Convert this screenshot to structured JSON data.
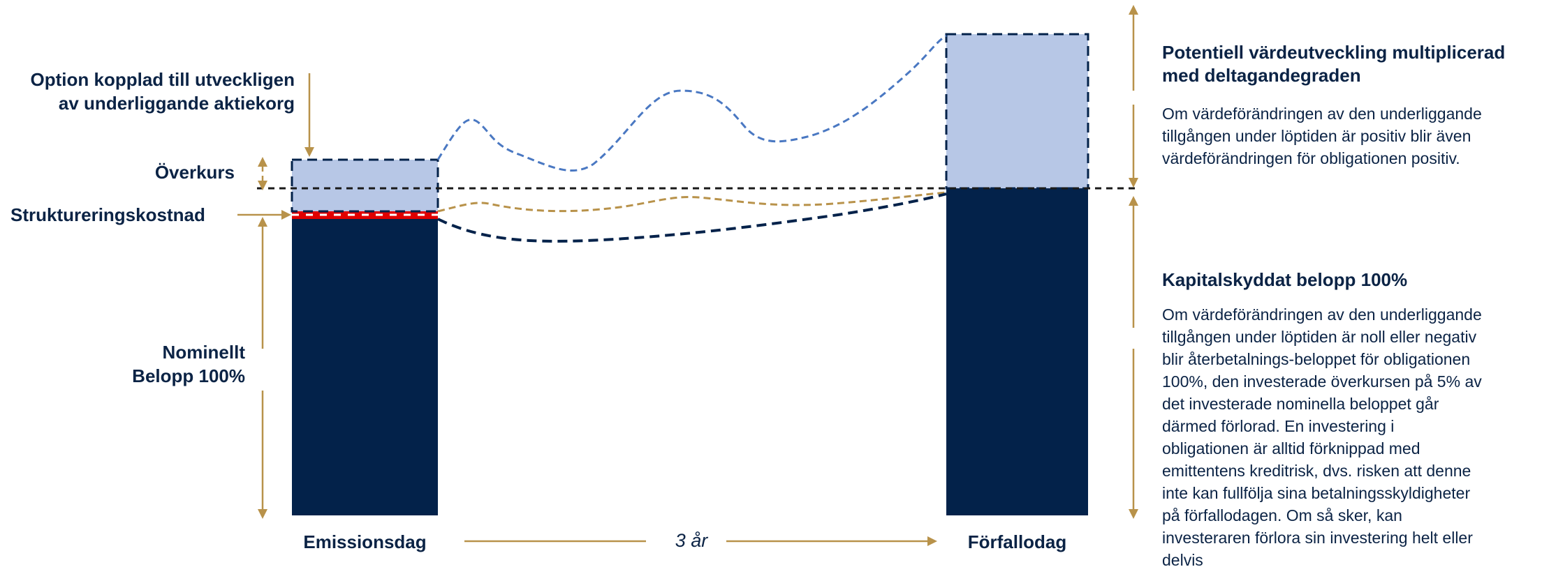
{
  "labels": {
    "option": [
      "Option kopplad till utveckligen",
      "av underliggande aktiekorg"
    ],
    "overkurs": "Överkurs",
    "struktureringskostnad": "Struktureringskostnad",
    "nominellt": [
      "Nominellt",
      "Belopp 100%"
    ],
    "emissionsdag": "Emissionsdag",
    "forfallodag": "Förfallodag",
    "duration": "3 år"
  },
  "side_panel": {
    "upside_title": [
      "Potentiell värdeutveckling multiplicerad",
      "med deltagandegraden"
    ],
    "upside_text": [
      "Om värdeförändringen av den underliggande",
      "tillgången under löptiden är positiv blir även",
      "värdeförändringen för obligationen positiv."
    ],
    "protected_title": "Kapitalskyddat belopp 100%",
    "protected_text": [
      "Om värdeförändringen av den underliggande",
      "tillgången under löptiden är noll eller negativ",
      "blir återbetalnings-beloppet för obligationen",
      "100%, den investerade överkursen på 5% av",
      "det investerade nominella beloppet går",
      "därmed förlorad. En investering i",
      "obligationen är alltid förknippad med",
      "emittentens kreditrisk, dvs. risken att denne",
      "inte kan fullfölja sina betalningsskyldigheter",
      "på förfallodagen. Om så sker, kan",
      "investeraren förlora sin investering helt eller",
      "delvis"
    ]
  },
  "colors": {
    "navy": "#03224a",
    "light_blue": "#b7c7e6",
    "gold": "#b8924a",
    "red": "#e00000",
    "dashed_blue": "#4a78c2",
    "text": "#0b2345"
  }
}
